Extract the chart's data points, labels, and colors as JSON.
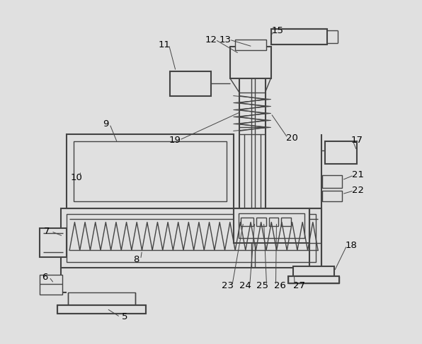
{
  "bg_color": "#e0e0e0",
  "lc": "#444444",
  "lw": 1.0,
  "lw2": 1.5,
  "fig_width": 5.96,
  "fig_height": 4.87,
  "dpi": 100
}
